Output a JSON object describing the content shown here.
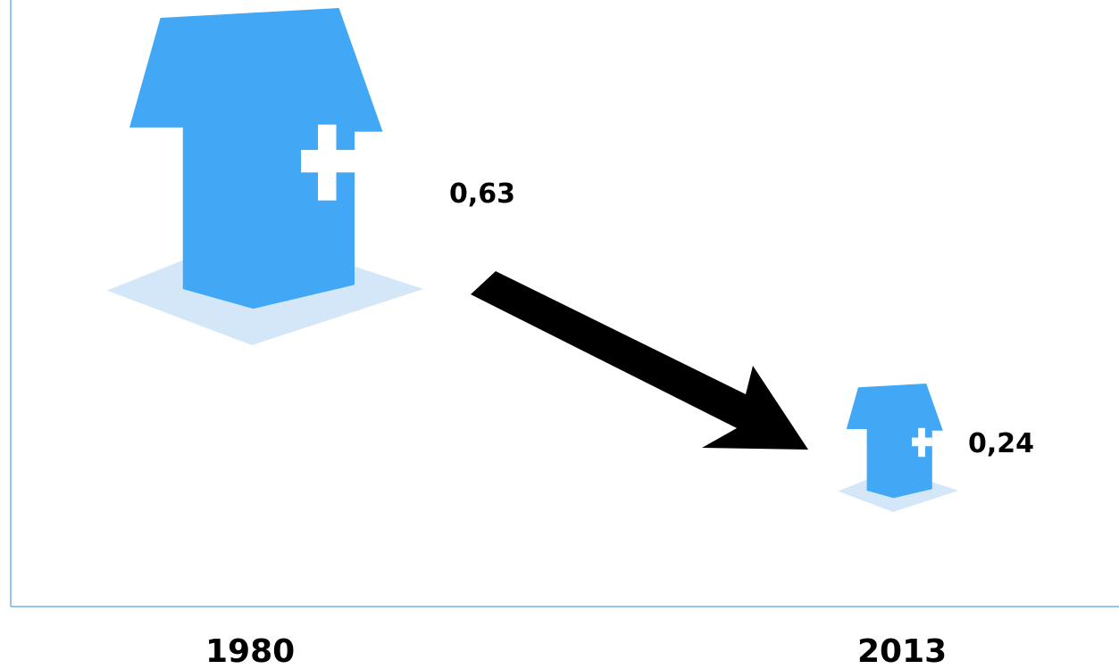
{
  "chart_data": {
    "type": "bar",
    "categories": [
      "1980",
      "2013"
    ],
    "values": [
      0.63,
      0.24
    ],
    "value_labels": [
      "0,63",
      "0,24"
    ],
    "title": "",
    "xlabel": "",
    "ylabel": "",
    "grid": false,
    "legend": "none",
    "marker": "house-with-cross-icon",
    "trend": "decrease"
  },
  "colors": {
    "house": "#42a8f5",
    "shadow": "#d3e7f9",
    "axis": "#6fb3e6",
    "arrow": "#000000",
    "cross": "#ffffff"
  }
}
